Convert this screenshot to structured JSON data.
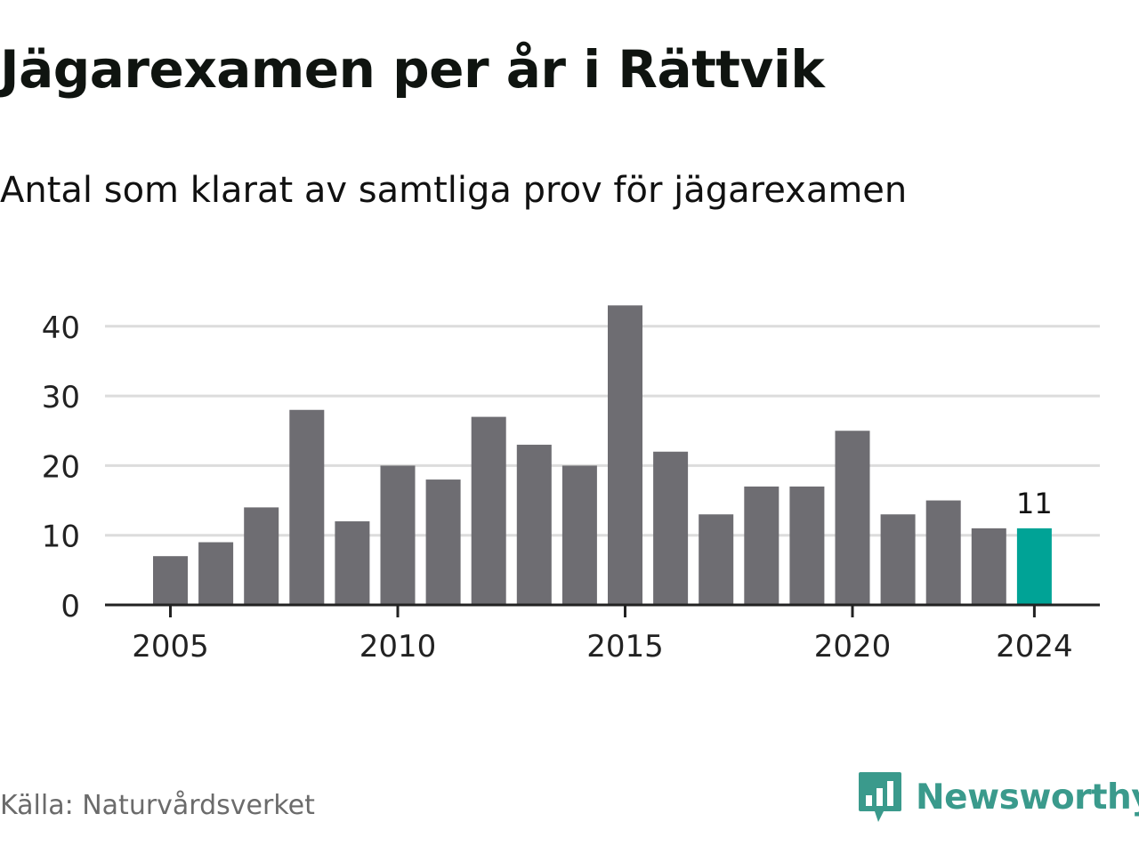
{
  "header": {
    "title": "Jägarexamen per år i Rättvik",
    "subtitle": "Antal som klarat av samtliga prov för jägarexamen"
  },
  "footer": {
    "source": "Källa: Naturvårdsverket",
    "brand": "Newsworthy",
    "brand_icon": "newsworthy-logo-icon",
    "brand_color": "#3a9a8c"
  },
  "chart_data": {
    "type": "bar",
    "title": "Jägarexamen per år i Rättvik",
    "subtitle": "Antal som klarat av samtliga prov för jägarexamen",
    "xlabel": "",
    "ylabel": "",
    "categories": [
      2005,
      2006,
      2007,
      2008,
      2009,
      2010,
      2011,
      2012,
      2013,
      2014,
      2015,
      2016,
      2017,
      2018,
      2019,
      2020,
      2021,
      2022,
      2023,
      2024
    ],
    "values": [
      7,
      9,
      14,
      28,
      12,
      20,
      18,
      27,
      23,
      20,
      43,
      22,
      13,
      17,
      17,
      25,
      13,
      15,
      11,
      11
    ],
    "x_ticks": [
      2005,
      2010,
      2015,
      2020,
      2024
    ],
    "y_ticks": [
      0,
      10,
      20,
      30,
      40
    ],
    "ylim": [
      0,
      45
    ],
    "grid": true,
    "colors": {
      "bar": "#6e6d72",
      "highlight": "#00a396",
      "grid": "#dcdcdc",
      "axis": "#222222"
    },
    "highlight_index": 19,
    "data_labels": [
      {
        "index": 19,
        "text": "11"
      }
    ]
  }
}
